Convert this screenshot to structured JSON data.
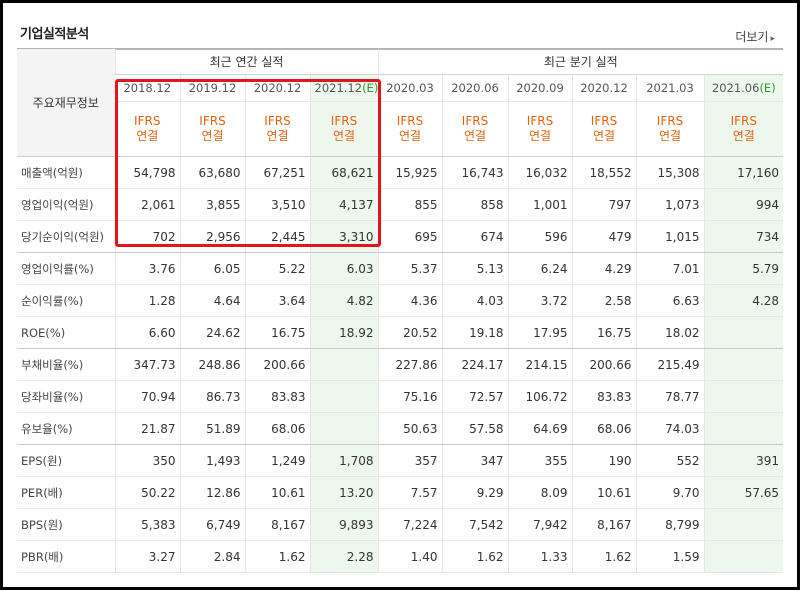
{
  "section_title": "기업실적분석",
  "more_label": "더보기",
  "header": {
    "row_label": "주요재무정보",
    "annual_group": "최근 연간 실적",
    "quarter_group": "최근 분기 실적",
    "periods": [
      {
        "label": "2018.12",
        "estimate": ""
      },
      {
        "label": "2019.12",
        "estimate": ""
      },
      {
        "label": "2020.12",
        "estimate": ""
      },
      {
        "label": "2021.12",
        "estimate": "(E)"
      },
      {
        "label": "2020.03",
        "estimate": ""
      },
      {
        "label": "2020.06",
        "estimate": ""
      },
      {
        "label": "2020.09",
        "estimate": ""
      },
      {
        "label": "2020.12",
        "estimate": ""
      },
      {
        "label": "2021.03",
        "estimate": ""
      },
      {
        "label": "2021.06",
        "estimate": "(E)"
      }
    ],
    "standard_line1": "IFRS",
    "standard_line2": "연결"
  },
  "rows": [
    {
      "label": "매출액(억원)",
      "values": [
        "54,798",
        "63,680",
        "67,251",
        "68,621",
        "15,925",
        "16,743",
        "16,032",
        "18,552",
        "15,308",
        "17,160"
      ]
    },
    {
      "label": "영업이익(억원)",
      "values": [
        "2,061",
        "3,855",
        "3,510",
        "4,137",
        "855",
        "858",
        "1,001",
        "797",
        "1,073",
        "994"
      ]
    },
    {
      "label": "당기순이익(억원)",
      "values": [
        "702",
        "2,956",
        "2,445",
        "3,310",
        "695",
        "674",
        "596",
        "479",
        "1,015",
        "734"
      ]
    },
    {
      "label": "영업이익률(%)",
      "values": [
        "3.76",
        "6.05",
        "5.22",
        "6.03",
        "5.37",
        "5.13",
        "6.24",
        "4.29",
        "7.01",
        "5.79"
      ]
    },
    {
      "label": "순이익률(%)",
      "values": [
        "1.28",
        "4.64",
        "3.64",
        "4.82",
        "4.36",
        "4.03",
        "3.72",
        "2.58",
        "6.63",
        "4.28"
      ]
    },
    {
      "label": "ROE(%)",
      "values": [
        "6.60",
        "24.62",
        "16.75",
        "18.92",
        "20.52",
        "19.18",
        "17.95",
        "16.75",
        "18.02",
        ""
      ]
    },
    {
      "label": "부채비율(%)",
      "values": [
        "347.73",
        "248.86",
        "200.66",
        "",
        "227.86",
        "224.17",
        "214.15",
        "200.66",
        "215.49",
        ""
      ]
    },
    {
      "label": "당좌비율(%)",
      "values": [
        "70.94",
        "86.73",
        "83.83",
        "",
        "75.16",
        "72.57",
        "106.72",
        "83.83",
        "78.77",
        ""
      ]
    },
    {
      "label": "유보율(%)",
      "values": [
        "21.87",
        "51.89",
        "68.06",
        "",
        "50.63",
        "57.58",
        "64.69",
        "68.06",
        "74.03",
        ""
      ]
    },
    {
      "label": "EPS(원)",
      "values": [
        "350",
        "1,493",
        "1,249",
        "1,708",
        "357",
        "347",
        "355",
        "190",
        "552",
        "391"
      ]
    },
    {
      "label": "PER(배)",
      "values": [
        "50.22",
        "12.86",
        "10.61",
        "13.20",
        "7.57",
        "9.29",
        "8.09",
        "10.61",
        "9.70",
        "57.65"
      ]
    },
    {
      "label": "BPS(원)",
      "values": [
        "5,383",
        "6,749",
        "8,167",
        "9,893",
        "7,224",
        "7,542",
        "7,942",
        "8,167",
        "8,799",
        ""
      ]
    },
    {
      "label": "PBR(배)",
      "values": [
        "3.27",
        "2.84",
        "1.62",
        "2.28",
        "1.40",
        "1.62",
        "1.33",
        "1.62",
        "1.59",
        ""
      ]
    }
  ],
  "colors": {
    "ifrs_text": "#e2620f",
    "estimate_bg": "#eef7ee",
    "estimate_mark": "#2e9a2e",
    "highlight_box": "#e3141e"
  }
}
